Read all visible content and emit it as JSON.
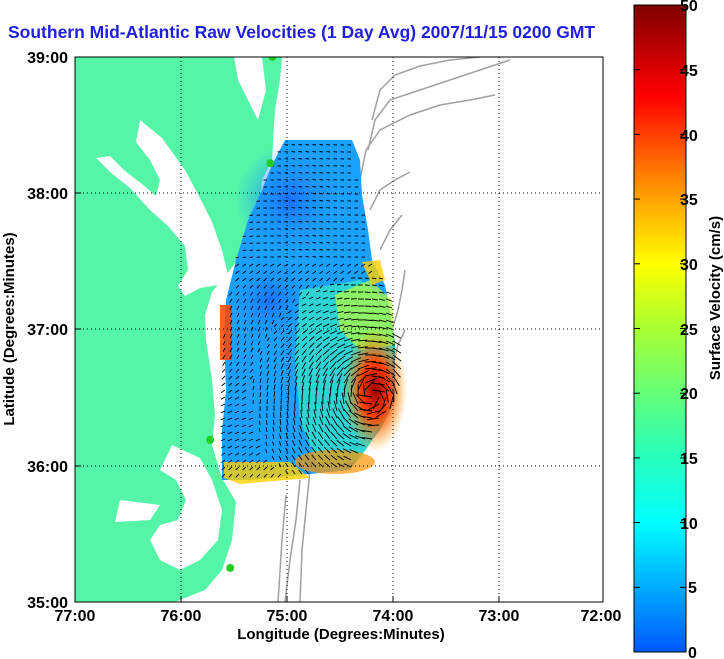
{
  "title": "Southern Mid-Atlantic Raw Velocities (1 Day Avg) 2007/11/15 0200 GMT",
  "chart_data": {
    "type": "heatmap",
    "title": "Southern Mid-Atlantic Raw Velocities (1 Day Avg) 2007/11/15 0200 GMT",
    "xlabel": "Longitude (Degrees:Minutes)",
    "ylabel": "Latitude (Degrees:Minutes)",
    "xlim": [
      -77,
      -72
    ],
    "ylim": [
      35,
      39
    ],
    "x_tick_labels": [
      "77:00",
      "76:00",
      "75:00",
      "74:00",
      "73:00",
      "72:00"
    ],
    "y_tick_labels": [
      "39:00",
      "38:00",
      "37:00",
      "36:00",
      "35:00"
    ],
    "grid": true,
    "colorbar": {
      "label": "Surface Velocity (cm/s)",
      "range": [
        0,
        50
      ],
      "tick_labels": [
        "50",
        "45",
        "40",
        "35",
        "30",
        "25",
        "20",
        "15",
        "10",
        "5",
        "0"
      ],
      "colormap": [
        "#0000c0",
        "#0060ff",
        "#00d8ff",
        "#40ffb8",
        "#c8ff38",
        "#ffc800",
        "#ff6000",
        "#ff0000",
        "#800000"
      ]
    },
    "colors": {
      "land": "#55f5a8",
      "water": "#ffffff",
      "bathymetry": "#a0a0a0",
      "stations": "#22cc22",
      "vectors": "#000000"
    },
    "stations": [
      {
        "lon": -75.13,
        "lat": 39.0
      },
      {
        "lon": -75.15,
        "lat": 38.22
      },
      {
        "lon": -75.72,
        "lat": 36.19
      },
      {
        "lon": -75.53,
        "lat": 35.25
      }
    ]
  }
}
